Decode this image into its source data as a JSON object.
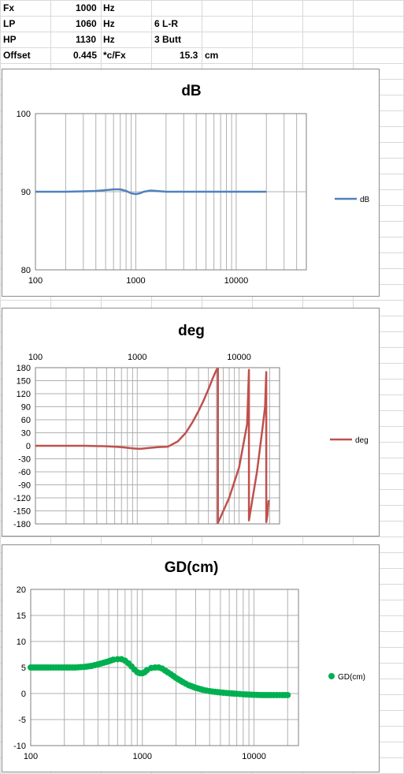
{
  "sheet": {
    "rows": [
      {
        "label": "Fx",
        "value": "1000",
        "unit": "Hz",
        "extra": "",
        "extra_value": "",
        "extra_unit": ""
      },
      {
        "label": "LP",
        "value": "1060",
        "unit": "Hz",
        "extra": "6 L-R",
        "extra_value": "",
        "extra_unit": ""
      },
      {
        "label": "HP",
        "value": "1130",
        "unit": "Hz",
        "extra": "3 Butt",
        "extra_value": "",
        "extra_unit": ""
      },
      {
        "label": "Offset",
        "value": "0.445",
        "unit": "*c/Fx",
        "extra": "",
        "extra_value": "15.3",
        "extra_unit": "cm"
      }
    ]
  },
  "chart_data": [
    {
      "type": "line",
      "title": "dB",
      "xscale": "log",
      "xlim": [
        100,
        50000
      ],
      "ylim": [
        80,
        100
      ],
      "yticks": [
        80,
        90,
        100
      ],
      "xticks": [
        100,
        1000,
        10000
      ],
      "grid": true,
      "legend": "right",
      "series": [
        {
          "name": "dB",
          "color": "#4f81bd",
          "x": [
            100,
            200,
            300,
            400,
            500,
            600,
            700,
            800,
            900,
            1000,
            1100,
            1200,
            1400,
            1600,
            1800,
            2000,
            3000,
            5000,
            10000,
            20000
          ],
          "y": [
            90,
            90,
            90.05,
            90.1,
            90.2,
            90.3,
            90.3,
            90.1,
            89.8,
            89.7,
            89.8,
            90.0,
            90.15,
            90.1,
            90.05,
            90.0,
            90.0,
            90.0,
            90.0,
            90.0
          ]
        }
      ]
    },
    {
      "type": "line",
      "title": "deg",
      "xscale": "log",
      "xlim": [
        100,
        25000
      ],
      "ylim": [
        -180,
        180
      ],
      "yticks": [
        -180,
        -150,
        -120,
        -90,
        -60,
        -30,
        0,
        30,
        60,
        90,
        120,
        150,
        180
      ],
      "xticks": [
        100,
        1000,
        10000
      ],
      "grid": true,
      "legend": "right",
      "series": [
        {
          "name": "deg",
          "color": "#c0504d",
          "x": [
            100,
            300,
            500,
            700,
            900,
            1000,
            1100,
            1300,
            1600,
            2000,
            2500,
            3000,
            3500,
            4000,
            4500,
            5000,
            5500,
            6000,
            6200,
            6200,
            8000,
            10000,
            12000,
            12500,
            12500,
            15000,
            17000,
            18000,
            18500,
            18500,
            19000,
            19500
          ],
          "y": [
            0,
            0,
            -1,
            -3,
            -6,
            -7,
            -7,
            -5,
            -3,
            -2,
            10,
            30,
            55,
            80,
            105,
            130,
            155,
            175,
            178,
            -178,
            -120,
            -50,
            50,
            175,
            -172,
            -60,
            40,
            90,
            170,
            -176,
            -160,
            -125
          ]
        }
      ]
    },
    {
      "type": "scatter",
      "title": "GD(cm)",
      "xscale": "log",
      "xlim": [
        100,
        25000
      ],
      "ylim": [
        -10,
        20
      ],
      "yticks": [
        -10,
        -5,
        0,
        5,
        10,
        15,
        20
      ],
      "xticks": [
        100,
        1000,
        10000
      ],
      "grid": true,
      "legend": "right",
      "series": [
        {
          "name": "GD(cm)",
          "color": "#00b050",
          "x": [
            100,
            150,
            200,
            250,
            300,
            350,
            400,
            450,
            500,
            550,
            600,
            650,
            700,
            750,
            800,
            850,
            900,
            950,
            1000,
            1050,
            1100,
            1200,
            1300,
            1400,
            1500,
            1600,
            1800,
            2000,
            2300,
            2600,
            3000,
            3500,
            4000,
            5000,
            6000,
            7000,
            8000,
            9000,
            10000,
            12000,
            15000,
            18000,
            20000
          ],
          "y": [
            5,
            5,
            5,
            5,
            5.1,
            5.3,
            5.6,
            5.9,
            6.2,
            6.5,
            6.6,
            6.6,
            6.3,
            5.8,
            5.2,
            4.6,
            4.1,
            3.9,
            3.9,
            4.1,
            4.5,
            4.9,
            5.0,
            5.0,
            4.8,
            4.4,
            3.7,
            3.0,
            2.2,
            1.6,
            1.1,
            0.7,
            0.45,
            0.2,
            0.05,
            -0.05,
            -0.15,
            -0.2,
            -0.25,
            -0.3,
            -0.3,
            -0.3,
            -0.3
          ]
        }
      ]
    }
  ]
}
